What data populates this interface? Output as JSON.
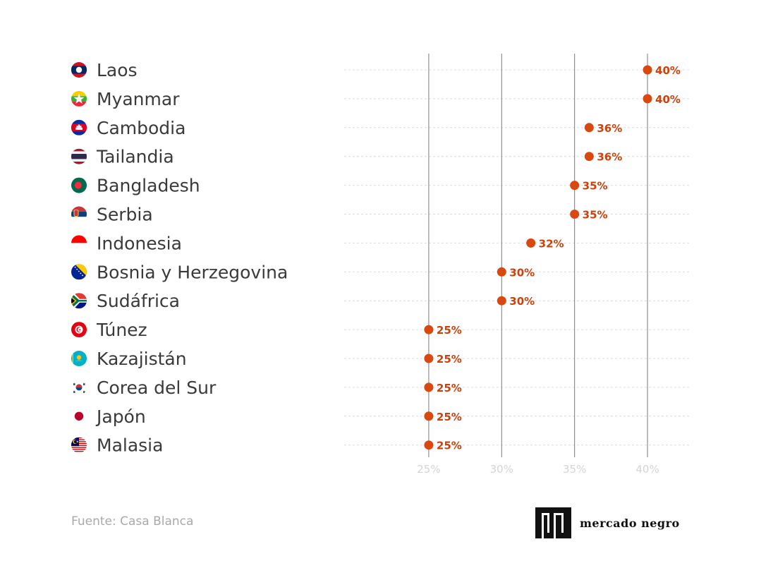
{
  "chart_data": {
    "type": "scatter",
    "orientation": "horizontal-dot",
    "categories": [
      "Laos",
      "Myanmar",
      "Cambodia",
      "Tailandia",
      "Bangladesh",
      "Serbia",
      "Indonesia",
      "Bosnia y Herzegovina",
      "Sudáfrica",
      "Túnez",
      "Kazajistán",
      "Corea del Sur",
      "Japón",
      "Malasia"
    ],
    "values": [
      40,
      40,
      36,
      36,
      35,
      35,
      32,
      30,
      30,
      25,
      25,
      25,
      25,
      25
    ],
    "value_labels": [
      "40%",
      "40%",
      "36%",
      "36%",
      "35%",
      "35%",
      "32%",
      "30%",
      "30%",
      "25%",
      "25%",
      "25%",
      "25%",
      "25%"
    ],
    "x_ticks": [
      25,
      30,
      35,
      40
    ],
    "x_tick_labels": [
      "25%",
      "30%",
      "35%",
      "40%"
    ],
    "xlim": [
      19.2,
      42.9
    ],
    "grid": true,
    "colors": {
      "dot": "#d9480f",
      "label": "#c8430d",
      "grid": "#7a7a7a",
      "row_line": "#dcdcdc",
      "tick": "#d4d4d4"
    },
    "flag_icons": [
      "laos-flag-icon",
      "myanmar-flag-icon",
      "cambodia-flag-icon",
      "thailand-flag-icon",
      "bangladesh-flag-icon",
      "serbia-flag-icon",
      "indonesia-flag-icon",
      "bosnia-flag-icon",
      "south-africa-flag-icon",
      "tunisia-flag-icon",
      "kazakhstan-flag-icon",
      "south-korea-flag-icon",
      "japan-flag-icon",
      "malaysia-flag-icon"
    ]
  },
  "source": "Fuente: Casa Blanca",
  "brand": {
    "name": "mercado negro",
    "logo_icon": "mercado-negro-logo-icon"
  }
}
